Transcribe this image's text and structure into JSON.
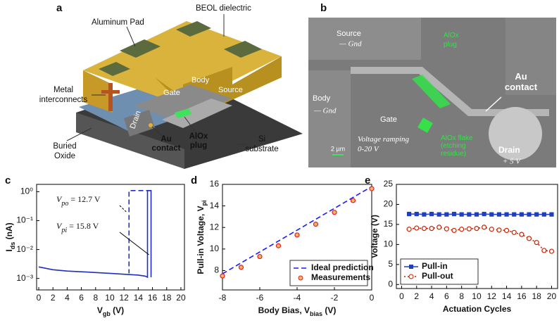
{
  "panel_a": {
    "label": "a",
    "texts": [
      "Aluminum Pad",
      "BEOL dielectric",
      [
        "Metal",
        "interconnects"
      ],
      "Gate",
      "Body",
      "Source",
      "Drain",
      [
        "Au",
        "contact"
      ],
      [
        "AlOx",
        "plug"
      ],
      [
        "Si",
        "substrate"
      ],
      [
        "Buried",
        "Oxide"
      ]
    ]
  },
  "panel_b": {
    "label": "b",
    "texts": [
      "Source",
      "— Gnd",
      [
        "AlOx",
        "plug"
      ],
      [
        "Au",
        "contact"
      ],
      "Body",
      "— Gnd",
      "Gate",
      [
        "Voltage ramping",
        "0-20 V"
      ],
      [
        "AlOx flake",
        "(etching",
        "residue)"
      ],
      "Drain",
      "+ 5 V",
      "2 µm"
    ]
  },
  "chart_data": [
    {
      "type": "line",
      "panel": "c",
      "log_y": true,
      "xlabel": {
        "text": "V",
        "sub": "gb",
        "after": " (V)"
      },
      "ylabel": {
        "text": "I",
        "sub": "ds",
        "after": " (nA)"
      },
      "xlim": [
        -0.3,
        20.5
      ],
      "xticks": [
        0,
        2,
        4,
        6,
        8,
        10,
        12,
        14,
        16,
        18,
        20
      ],
      "ylim": [
        0.0004,
        1.8
      ],
      "yticks": [
        {
          "value": 0.001,
          "label": "10⁻³"
        },
        {
          "value": 0.01,
          "label": "10⁻²"
        },
        {
          "value": 0.1,
          "label": "10⁻¹"
        },
        {
          "value": 1,
          "label": "10⁰"
        }
      ],
      "series": [
        {
          "color": "#1f2fbf",
          "line_style": "solid",
          "marker": "none",
          "x": [
            0,
            2,
            4,
            6,
            8,
            10,
            12,
            14,
            15,
            15.3,
            15.3,
            15.8,
            15.8
          ],
          "values": [
            0.0025,
            0.002,
            0.0018,
            0.0017,
            0.0016,
            0.0015,
            0.0014,
            0.0013,
            0.0012,
            0.0011,
            1.1,
            1.1,
            0.0011
          ]
        },
        {
          "color": "#1f2fbf",
          "line_style": "dashed",
          "marker": "none",
          "x": [
            15.8,
            12.7,
            12.7
          ],
          "values": [
            1.1,
            1.1,
            0.0015
          ]
        }
      ],
      "annotations": [
        {
          "symbol": "V",
          "sub": "po",
          "text": " = 12.7 V"
        },
        {
          "symbol": "V",
          "sub": "pi",
          "text": " = 15.8 V"
        }
      ]
    },
    {
      "type": "line",
      "panel": "d",
      "xlabel": {
        "text": "Body Bias, V",
        "sub": "bias",
        "after": " (V)"
      },
      "ylabel": {
        "text": "Pull-in Voltage, V",
        "sub": "pi",
        "after": ""
      },
      "xlim": [
        -8,
        0
      ],
      "xticks": [
        -8,
        -6,
        -4,
        -2,
        0
      ],
      "ylim": [
        6.2,
        16
      ],
      "yticks": [
        8,
        10,
        12,
        14,
        16
      ],
      "legend": "lower right",
      "series": [
        {
          "name": "Ideal prediction",
          "color": "#1a1aff",
          "line_style": "dashed",
          "marker": "none",
          "x": [
            -8,
            0
          ],
          "values": [
            7.7,
            15.8
          ]
        },
        {
          "name": "Measurements",
          "color": "#e02020",
          "marker_fill": "#f7b26b",
          "line_style": "none",
          "marker": "circle",
          "x": [
            -8,
            -7,
            -6,
            -5,
            -4,
            -3,
            -2,
            -1,
            0
          ],
          "values": [
            7.5,
            8.3,
            9.3,
            10.3,
            11.3,
            12.3,
            13.4,
            14.5,
            15.6
          ]
        }
      ]
    },
    {
      "type": "line",
      "panel": "e",
      "xlabel": {
        "text": "Actuation Cycles",
        "sub": "",
        "after": ""
      },
      "ylabel": {
        "text": "Voltage (V)",
        "sub": "",
        "after": ""
      },
      "xlim": [
        -0.7,
        20.8
      ],
      "xticks": [
        0,
        2,
        4,
        6,
        8,
        10,
        12,
        14,
        16,
        18,
        20
      ],
      "ylim": [
        -1,
        25
      ],
      "yticks": [
        0,
        5,
        10,
        15,
        20,
        25
      ],
      "legend": "lower left",
      "x": [
        1,
        2,
        3,
        4,
        5,
        6,
        7,
        8,
        9,
        10,
        11,
        12,
        13,
        14,
        15,
        16,
        17,
        18,
        19,
        20
      ],
      "series": [
        {
          "name": "Pull-in",
          "color": "#1f3fbf",
          "marker_fill": "#1f3fbf",
          "line_style": "solid",
          "marker": "square",
          "values": [
            17.6,
            17.6,
            17.5,
            17.6,
            17.5,
            17.5,
            17.6,
            17.5,
            17.5,
            17.5,
            17.6,
            17.5,
            17.5,
            17.5,
            17.5,
            17.5,
            17.5,
            17.5,
            17.5,
            17.5
          ]
        },
        {
          "name": "Pull-out",
          "color": "#cc2200",
          "marker_fill": "#ffffff",
          "line_style": "dotted",
          "marker": "circle",
          "values": [
            13.8,
            14.1,
            14.0,
            14.0,
            14.3,
            13.9,
            13.5,
            13.8,
            13.9,
            14.0,
            14.3,
            13.8,
            13.6,
            13.5,
            13.0,
            12.5,
            11.5,
            10.5,
            8.5,
            8.3
          ]
        }
      ]
    }
  ]
}
